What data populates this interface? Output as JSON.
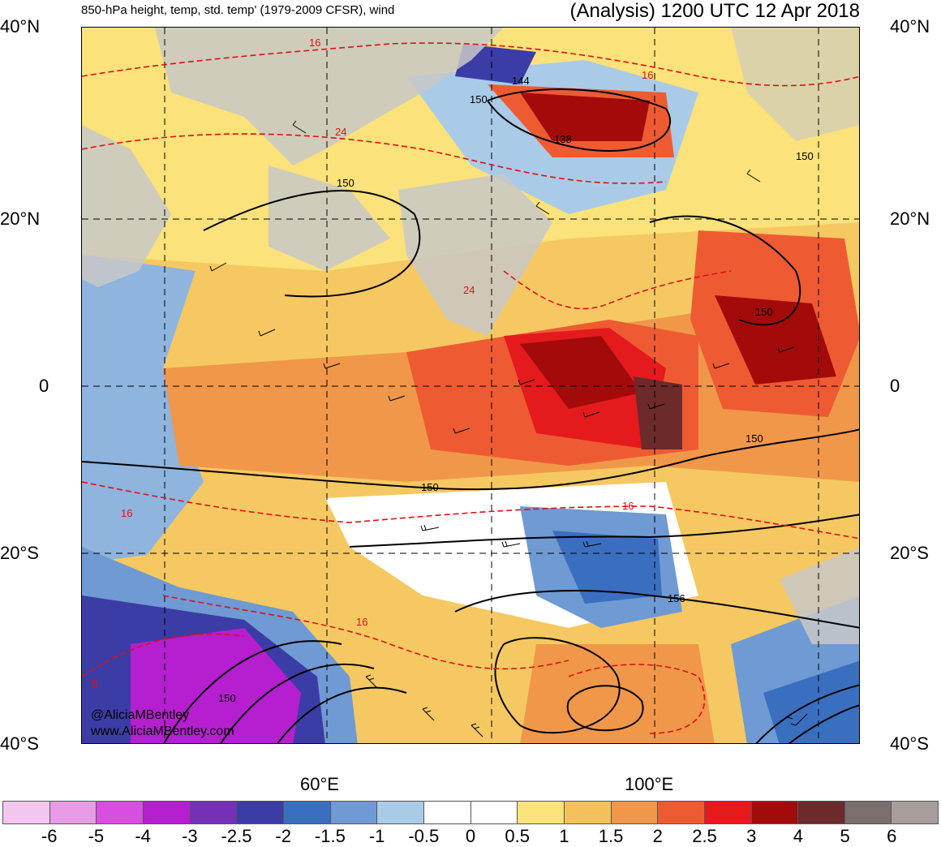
{
  "header": {
    "title_left": "850-hPa height, temp, std. temp' (1979-2009 CFSR), wind",
    "title_right": "(Analysis) 1200 UTC 12 Apr 2018"
  },
  "axes": {
    "lat_labels": [
      "40°N",
      "20°N",
      "0",
      "20°S",
      "40°S"
    ],
    "lon_labels": [
      "60°E",
      "100°E"
    ]
  },
  "contours": {
    "height_labels": [
      "144",
      "150",
      "138",
      "150",
      "150",
      "150",
      "150",
      "150",
      "156",
      "150"
    ],
    "temp_labels": [
      "16",
      "24",
      "16",
      "24",
      "16",
      "16",
      "16",
      "8"
    ]
  },
  "credit": {
    "handle": "@AliciaMBentley",
    "site": "www.AliciaMBentley.com"
  },
  "colorbar": {
    "colors": [
      "#f3c6f0",
      "#e79be4",
      "#d84fe0",
      "#b51fd0",
      "#7530b8",
      "#3c3ca6",
      "#3a6fc0",
      "#6f9ad3",
      "#a9cbe7",
      "#ffffff",
      "#ffffff",
      "#fbe27a",
      "#f4c15a",
      "#f1974a",
      "#ee5b33",
      "#e41a1c",
      "#a30b0b",
      "#6c2a2a",
      "#7a6e6e",
      "#a89d9d"
    ],
    "ticks": [
      "-6",
      "-5",
      "-4",
      "-3",
      "-2.5",
      "-2",
      "-1.5",
      "-1",
      "-0.5",
      "0",
      "0.5",
      "1",
      "1.5",
      "2",
      "2.5",
      "3",
      "4",
      "5",
      "6"
    ]
  },
  "palette": {
    "land": "#c8c8c8",
    "ocean_base": "#f6c862",
    "contour_height": "#000000",
    "contour_temp": "#dd1111"
  }
}
